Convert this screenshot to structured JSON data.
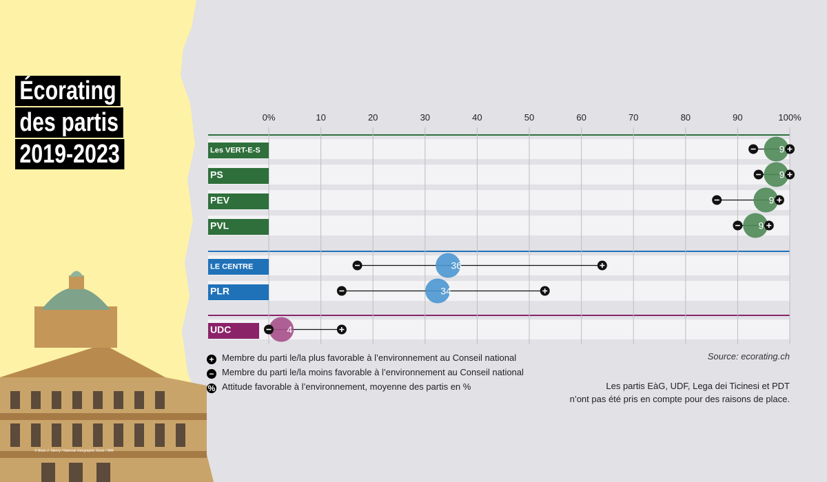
{
  "title": {
    "lines": [
      "Écorating",
      "des partis",
      "2019-2023"
    ]
  },
  "chart_data": {
    "type": "dot-range",
    "x_ticks": [
      "0%",
      "10",
      "20",
      "30",
      "40",
      "50",
      "60",
      "70",
      "80",
      "90",
      "100%"
    ],
    "xlim": [
      0,
      100
    ],
    "groups": [
      {
        "name": "green",
        "color": "#2e6f3b",
        "bubble": "#4f8a58",
        "parties": [
          {
            "label": "Les VERT-E-S",
            "avg": 99,
            "min": 93,
            "max": 100
          },
          {
            "label": "PS",
            "avg": 99,
            "min": 94,
            "max": 100
          },
          {
            "label": "PEV",
            "avg": 97,
            "min": 86,
            "max": 98
          },
          {
            "label": "PVL",
            "avg": 95,
            "min": 90,
            "max": 96
          }
        ]
      },
      {
        "name": "blue",
        "color": "#1f72b8",
        "bubble": "#4b97d2",
        "parties": [
          {
            "label": "LE CENTRE",
            "avg": 36,
            "min": 17,
            "max": 64
          },
          {
            "label": "PLR",
            "avg": 34,
            "min": 14,
            "max": 53
          }
        ]
      },
      {
        "name": "purple",
        "color": "#8b2369",
        "bubble": "#a6508a",
        "parties": [
          {
            "label": "UDC",
            "avg": 4,
            "min": 0,
            "max": 14
          }
        ]
      }
    ]
  },
  "legend": {
    "max_symbol": "+",
    "min_symbol": "−",
    "avg_symbol": "%",
    "max_text": "Membre du parti le/la plus favorable à l’environnement au Conseil national",
    "min_text": "Membre du parti le/la moins favorable à l’environnement au Conseil national",
    "avg_text": "Attitude favorable à l’environnement, moyenne des partis en %"
  },
  "source": "Source: ecorating.ch",
  "note": {
    "line1": "Les partis EàG, UDF, Lega dei Ticinesi et PDT",
    "line2": "n’ont pas été pris en compte pour des raisons de place."
  },
  "photo_credit": "© Brian J. Skerry / National Geographic Stock / WM",
  "colors": {
    "yellow": "#fdf2a6",
    "panel": "#e1e1e6",
    "row": "#f3f3f5"
  }
}
